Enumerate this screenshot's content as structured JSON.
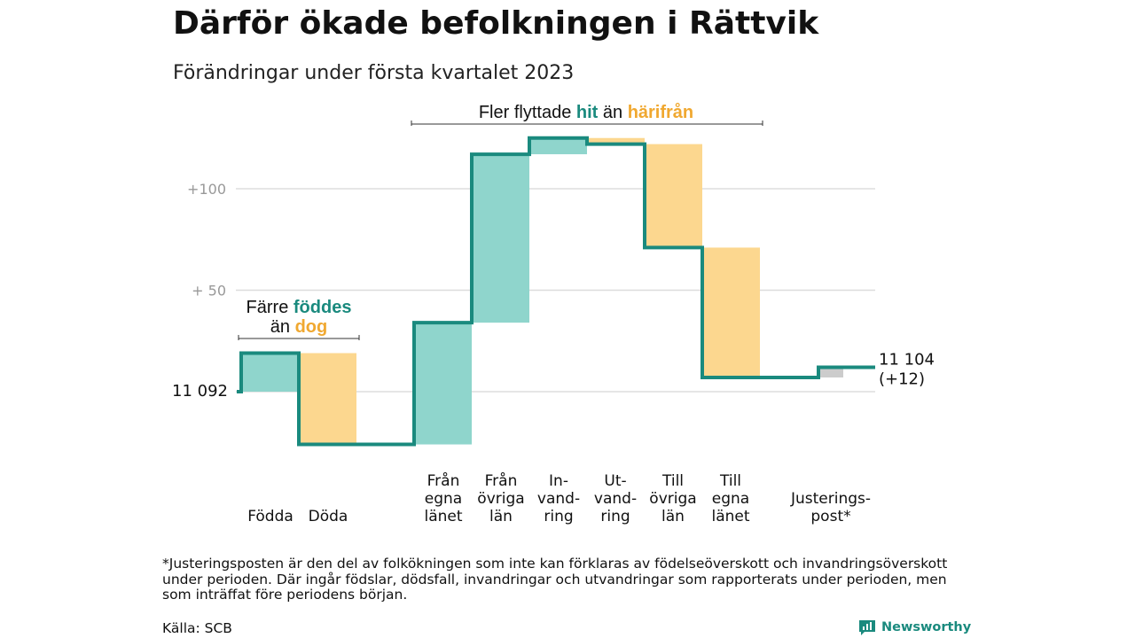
{
  "title": "Därför ökade befolkningen i Rättvik",
  "subtitle": "Förändringar under första kvartalet 2023",
  "footnote": "*Justeringsposten är den del av folkökningen som inte kan förklaras av födelseöverskott och invandringsöverskott under perioden. Där ingår födslar, dödsfall, invandringar och utvandringar som rapporterats under perioden, men som inträffat före periodens början.",
  "source": "Källa: SCB",
  "brand": "Newsworthy",
  "colors": {
    "positive": "#8fd5cc",
    "negative": "#fcd78f",
    "adjustment": "#cccccc",
    "line": "#1a8a7e",
    "grid": "#dddddd",
    "tick_text": "#999999",
    "accent_teal": "#1a8a7e",
    "accent_orange": "#f0a830"
  },
  "chart_data": {
    "type": "waterfall",
    "start_value": 11092,
    "start_label": "11 092",
    "end_label": "11 104",
    "end_change_label": "(+12)",
    "y_ticks": [
      {
        "value": 100,
        "label": "+100"
      },
      {
        "value": 50,
        "label": "+ 50"
      }
    ],
    "ylim": [
      -30,
      130
    ],
    "grid": true,
    "steps": [
      {
        "label": [
          "Födda"
        ],
        "change": 19,
        "kind": "positive"
      },
      {
        "label": [
          "Döda"
        ],
        "change": -45,
        "kind": "negative"
      },
      {
        "label": [
          "Från",
          "egna",
          "länet"
        ],
        "change": 60,
        "kind": "positive"
      },
      {
        "label": [
          "Från",
          "övriga",
          "län"
        ],
        "change": 83,
        "kind": "positive"
      },
      {
        "label": [
          "In-",
          "vand-",
          "ring"
        ],
        "change": 8,
        "kind": "positive"
      },
      {
        "label": [
          "Ut-",
          "vand-",
          "ring"
        ],
        "change": -3,
        "kind": "negative"
      },
      {
        "label": [
          "Till",
          "övriga",
          "län"
        ],
        "change": -51,
        "kind": "negative"
      },
      {
        "label": [
          "Till",
          "egna",
          "länet"
        ],
        "change": -64,
        "kind": "negative"
      },
      {
        "label": [
          "Justerings-",
          "post*"
        ],
        "change": 5,
        "kind": "adjustment"
      }
    ],
    "annotations": [
      {
        "parts": [
          "Färre ",
          "föddes"
        ],
        "parts2": [
          "än ",
          "dog"
        ]
      },
      {
        "parts": [
          "Fler flyttade ",
          "hit",
          " än ",
          "härifrån"
        ]
      }
    ]
  }
}
